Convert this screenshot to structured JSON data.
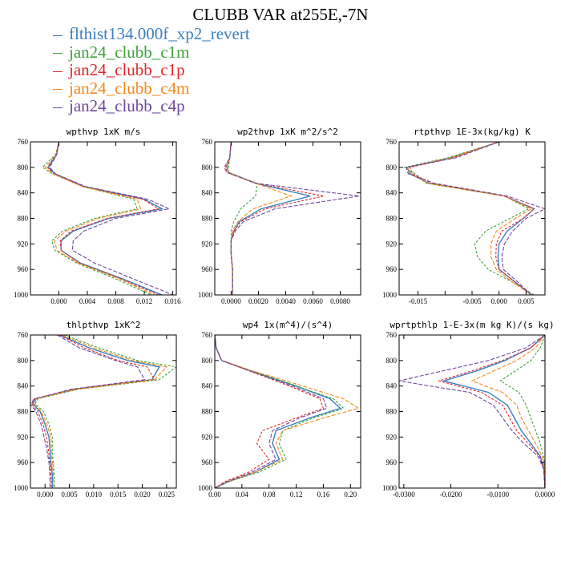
{
  "title": "CLUBB VAR at255E,-7N",
  "legend": [
    {
      "name": "flthist134.000f_xp2_revert",
      "color": "#3a7fc0"
    },
    {
      "name": "jan24_clubb_c1m",
      "color": "#3ea13a"
    },
    {
      "name": "jan24_clubb_c1p",
      "color": "#e0262a"
    },
    {
      "name": "jan24_clubb_c4m",
      "color": "#f2891c"
    },
    {
      "name": "jan24_clubb_c4p",
      "color": "#70479c"
    }
  ],
  "chart_data": [
    {
      "type": "line",
      "title": "wpthvp  1xK m/s",
      "xlim": [
        -0.004,
        0.0165
      ],
      "ylim": [
        760,
        1000
      ],
      "y_reversed": true,
      "xticks": [
        0.0,
        0.004,
        0.008,
        0.012,
        0.016
      ],
      "xtick_labels": [
        "0.000",
        "0.004",
        "0.008",
        "0.012",
        "0.016"
      ],
      "yticks": [
        760,
        800,
        840,
        880,
        920,
        960,
        1000
      ],
      "y": [
        760,
        780,
        800,
        810,
        830,
        850,
        865,
        880,
        900,
        915,
        930,
        950,
        975,
        1000
      ],
      "series": [
        {
          "x": [
            0.0,
            -0.0003,
            -0.0015,
            -0.0006,
            0.0035,
            0.012,
            0.0145,
            0.007,
            0.002,
            0.0003,
            0.0003,
            0.003,
            0.009,
            0.0145
          ]
        },
        {
          "x": [
            0.0,
            -0.0005,
            -0.0023,
            -0.0009,
            0.0033,
            0.0105,
            0.011,
            0.005,
            0.0005,
            -0.001,
            -0.0006,
            0.0025,
            0.008,
            0.013
          ]
        },
        {
          "x": [
            0.0,
            -0.0004,
            -0.0016,
            -0.0007,
            0.0034,
            0.0118,
            0.014,
            0.0068,
            0.0017,
            0.0002,
            0.0003,
            0.0029,
            0.0088,
            0.014
          ]
        },
        {
          "x": [
            0.0,
            -0.0004,
            -0.0019,
            -0.0008,
            0.0033,
            0.011,
            0.0115,
            0.0055,
            0.001,
            -0.0006,
            -0.0003,
            0.0027,
            0.0085,
            0.0135
          ]
        },
        {
          "x": [
            0.0,
            -0.0003,
            -0.0013,
            -0.0005,
            0.0037,
            0.0125,
            0.0155,
            0.008,
            0.0035,
            0.002,
            0.0019,
            0.005,
            0.0105,
            0.016
          ]
        }
      ]
    },
    {
      "type": "line",
      "title": "wp2thvp  1xK m^2/s^2",
      "xlim": [
        -0.0012,
        0.0095
      ],
      "ylim": [
        760,
        1000
      ],
      "y_reversed": true,
      "xticks": [
        0.0,
        0.002,
        0.004,
        0.006,
        0.008
      ],
      "xtick_labels": [
        "0.0000",
        "0.0020",
        "0.0040",
        "0.0060",
        "0.0080"
      ],
      "yticks": [
        760,
        800,
        840,
        880,
        920,
        960,
        1000
      ],
      "y": [
        760,
        785,
        800,
        808,
        825,
        845,
        865,
        885,
        900,
        915,
        935,
        960,
        980,
        1000
      ],
      "series": [
        {
          "x": [
            0.0,
            -0.0001,
            -0.0003,
            -0.0002,
            0.0018,
            0.0058,
            0.0022,
            0.0006,
            0.0002,
            0.0,
            0.0,
            0.0001,
            0.0001,
            0.0001
          ]
        },
        {
          "x": [
            0.0,
            -0.0001,
            -0.0002,
            -0.0002,
            0.0019,
            0.0018,
            0.0007,
            0.0002,
            0.0,
            0.0,
            0.0,
            0.0001,
            0.0001,
            0.0001
          ]
        },
        {
          "x": [
            0.0,
            -0.0001,
            -0.0004,
            -0.0003,
            0.0018,
            0.0068,
            0.0025,
            0.0007,
            0.0002,
            0.0,
            0.0,
            0.0001,
            0.0001,
            0.0001
          ]
        },
        {
          "x": [
            0.0,
            -0.0001,
            -0.0003,
            -0.0002,
            0.0018,
            0.0044,
            0.0016,
            0.0005,
            0.0001,
            0.0,
            0.0,
            0.0001,
            0.0001,
            0.0001
          ]
        },
        {
          "x": [
            0.0,
            -0.0001,
            -0.0005,
            -0.0003,
            0.0018,
            0.0094,
            0.0032,
            0.0009,
            0.0003,
            0.0,
            0.0,
            0.0001,
            0.0001,
            0.0001
          ]
        }
      ]
    },
    {
      "type": "line",
      "title": "rtpthvp  1E-3x(kg/kg) K",
      "xlim": [
        -0.0185,
        0.0085
      ],
      "ylim": [
        760,
        1000
      ],
      "y_reversed": true,
      "xticks": [
        -0.015,
        -0.01,
        -0.005,
        0.0,
        0.005
      ],
      "xtick_labels": [
        "-0.015",
        "",
        "-0.005",
        "0.000",
        "0.005"
      ],
      "yticks": [
        760,
        800,
        840,
        880,
        920,
        960,
        1000
      ],
      "y": [
        760,
        785,
        800,
        810,
        825,
        845,
        865,
        880,
        900,
        920,
        940,
        960,
        980,
        1000
      ],
      "series": [
        {
          "x": [
            0.0,
            -0.009,
            -0.017,
            -0.0165,
            -0.013,
            0.001,
            0.0065,
            0.0045,
            0.0015,
            0.0,
            -0.0002,
            0.0,
            0.003,
            0.006
          ]
        },
        {
          "x": [
            0.0,
            -0.0095,
            -0.0175,
            -0.0155,
            -0.0135,
            0.001,
            0.0055,
            0.002,
            -0.0025,
            -0.0045,
            -0.004,
            -0.002,
            0.0025,
            0.0065
          ]
        },
        {
          "x": [
            0.0,
            -0.0085,
            -0.0165,
            -0.016,
            -0.0125,
            0.001,
            0.0065,
            0.0045,
            0.0005,
            -0.0005,
            -0.0006,
            0.0,
            0.003,
            0.006
          ]
        },
        {
          "x": [
            0.0,
            -0.009,
            -0.017,
            -0.0162,
            -0.0132,
            0.001,
            0.006,
            0.003,
            -0.0005,
            -0.0015,
            -0.0015,
            -0.0005,
            0.0025,
            0.006
          ]
        },
        {
          "x": [
            0.0,
            -0.008,
            -0.0172,
            -0.0168,
            -0.012,
            0.0015,
            0.0085,
            0.005,
            0.0025,
            0.001,
            0.0005,
            0.0008,
            0.0035,
            0.006
          ]
        }
      ]
    },
    {
      "type": "line",
      "title": "thlpthvp  1xK^2",
      "xlim": [
        -0.003,
        0.027
      ],
      "ylim": [
        760,
        1000
      ],
      "y_reversed": true,
      "xticks": [
        0.0,
        0.005,
        0.01,
        0.015,
        0.02,
        0.025
      ],
      "xtick_labels": [
        "0.000",
        "0.005",
        "0.010",
        "0.015",
        "0.020",
        "0.025"
      ],
      "yticks": [
        760,
        800,
        840,
        880,
        920,
        960,
        1000
      ],
      "y": [
        760,
        780,
        800,
        810,
        830,
        845,
        860,
        868,
        880,
        900,
        920,
        940,
        960,
        980,
        1000
      ],
      "series": [
        {
          "x": [
            0.003,
            0.009,
            0.017,
            0.0235,
            0.022,
            0.006,
            -0.002,
            -0.0025,
            -0.001,
            0.0,
            0.0008,
            0.001,
            0.0012,
            0.0015,
            0.0015
          ]
        },
        {
          "x": [
            0.004,
            0.011,
            0.019,
            0.027,
            0.0235,
            0.007,
            -0.0015,
            -0.002,
            -0.0003,
            0.0008,
            0.0015,
            0.0015,
            0.0017,
            0.0019,
            0.002
          ]
        },
        {
          "x": [
            0.003,
            0.008,
            0.015,
            0.021,
            0.0225,
            0.006,
            -0.002,
            -0.0028,
            -0.0015,
            -0.0004,
            0.0003,
            0.0007,
            0.001,
            0.0012,
            0.0013
          ]
        },
        {
          "x": [
            0.0035,
            0.01,
            0.018,
            0.025,
            0.0225,
            0.0065,
            -0.0018,
            -0.0022,
            -0.0008,
            0.0004,
            0.0012,
            0.0013,
            0.0015,
            0.0017,
            0.0018
          ]
        },
        {
          "x": [
            0.0025,
            0.007,
            0.0145,
            0.019,
            0.0205,
            0.0055,
            -0.0022,
            -0.003,
            -0.0019,
            -0.0008,
            -0.0002,
            0.0004,
            0.0008,
            0.001,
            0.001
          ]
        }
      ]
    },
    {
      "type": "line",
      "title": "wp4  1x(m^4)/(s^4)",
      "xlim": [
        0.0,
        0.215
      ],
      "ylim": [
        760,
        1000
      ],
      "y_reversed": true,
      "xticks": [
        0.0,
        0.04,
        0.08,
        0.12,
        0.16,
        0.2
      ],
      "xtick_labels": [
        "0.00",
        "0.04",
        "0.08",
        "0.12",
        "0.16",
        "0.20"
      ],
      "yticks": [
        760,
        800,
        840,
        880,
        920,
        960,
        1000
      ],
      "y": [
        760,
        780,
        800,
        815,
        840,
        860,
        875,
        890,
        910,
        930,
        955,
        975,
        990,
        1000
      ],
      "series": [
        {
          "x": [
            0.0,
            0.002,
            0.01,
            0.05,
            0.12,
            0.17,
            0.185,
            0.14,
            0.09,
            0.085,
            0.095,
            0.06,
            0.02,
            0.0
          ]
        },
        {
          "x": [
            0.0,
            0.002,
            0.01,
            0.05,
            0.12,
            0.175,
            0.19,
            0.145,
            0.1,
            0.095,
            0.105,
            0.065,
            0.02,
            0.0
          ]
        },
        {
          "x": [
            0.0,
            0.002,
            0.01,
            0.048,
            0.11,
            0.155,
            0.16,
            0.12,
            0.07,
            0.062,
            0.08,
            0.05,
            0.015,
            0.0
          ]
        },
        {
          "x": [
            0.0,
            0.002,
            0.01,
            0.052,
            0.13,
            0.19,
            0.212,
            0.16,
            0.1,
            0.09,
            0.1,
            0.06,
            0.018,
            0.0
          ]
        },
        {
          "x": [
            0.0,
            0.002,
            0.01,
            0.048,
            0.115,
            0.16,
            0.165,
            0.125,
            0.085,
            0.08,
            0.09,
            0.055,
            0.018,
            0.0
          ]
        }
      ]
    },
    {
      "type": "line",
      "title": "wprtpthlp  1-E-3x(m kg K)/(s kg)",
      "xlim": [
        -0.031,
        0.0
      ],
      "ylim": [
        760,
        1000
      ],
      "y_reversed": true,
      "xticks": [
        -0.03,
        -0.02,
        -0.01,
        0.0
      ],
      "xtick_labels": [
        "-0.0300",
        "-0.0200",
        "-0.0100",
        "0.0000"
      ],
      "yticks": [
        760,
        800,
        840,
        880,
        920,
        960,
        1000
      ],
      "y": [
        760,
        780,
        800,
        815,
        832,
        850,
        870,
        890,
        910,
        930,
        950,
        970,
        1000
      ],
      "series": [
        {
          "x": [
            0.0,
            -0.003,
            -0.0085,
            -0.014,
            -0.0215,
            -0.012,
            -0.008,
            -0.0065,
            -0.005,
            -0.003,
            -0.001,
            -0.0002,
            0.0
          ]
        },
        {
          "x": [
            0.0,
            -0.001,
            -0.003,
            -0.006,
            -0.0095,
            -0.0055,
            -0.004,
            -0.003,
            -0.002,
            -0.001,
            -0.0003,
            0.0,
            0.0
          ]
        },
        {
          "x": [
            0.0,
            -0.003,
            -0.009,
            -0.015,
            -0.0225,
            -0.0135,
            -0.009,
            -0.0075,
            -0.006,
            -0.0035,
            -0.0012,
            -0.0002,
            0.0
          ]
        },
        {
          "x": [
            0.0,
            -0.002,
            -0.006,
            -0.0105,
            -0.0155,
            -0.009,
            -0.006,
            -0.005,
            -0.0035,
            -0.002,
            -0.0006,
            -0.0001,
            0.0
          ]
        },
        {
          "x": [
            0.0,
            -0.004,
            -0.012,
            -0.021,
            -0.031,
            -0.016,
            -0.011,
            -0.009,
            -0.007,
            -0.0045,
            -0.0015,
            -0.0003,
            0.0
          ]
        }
      ]
    }
  ]
}
